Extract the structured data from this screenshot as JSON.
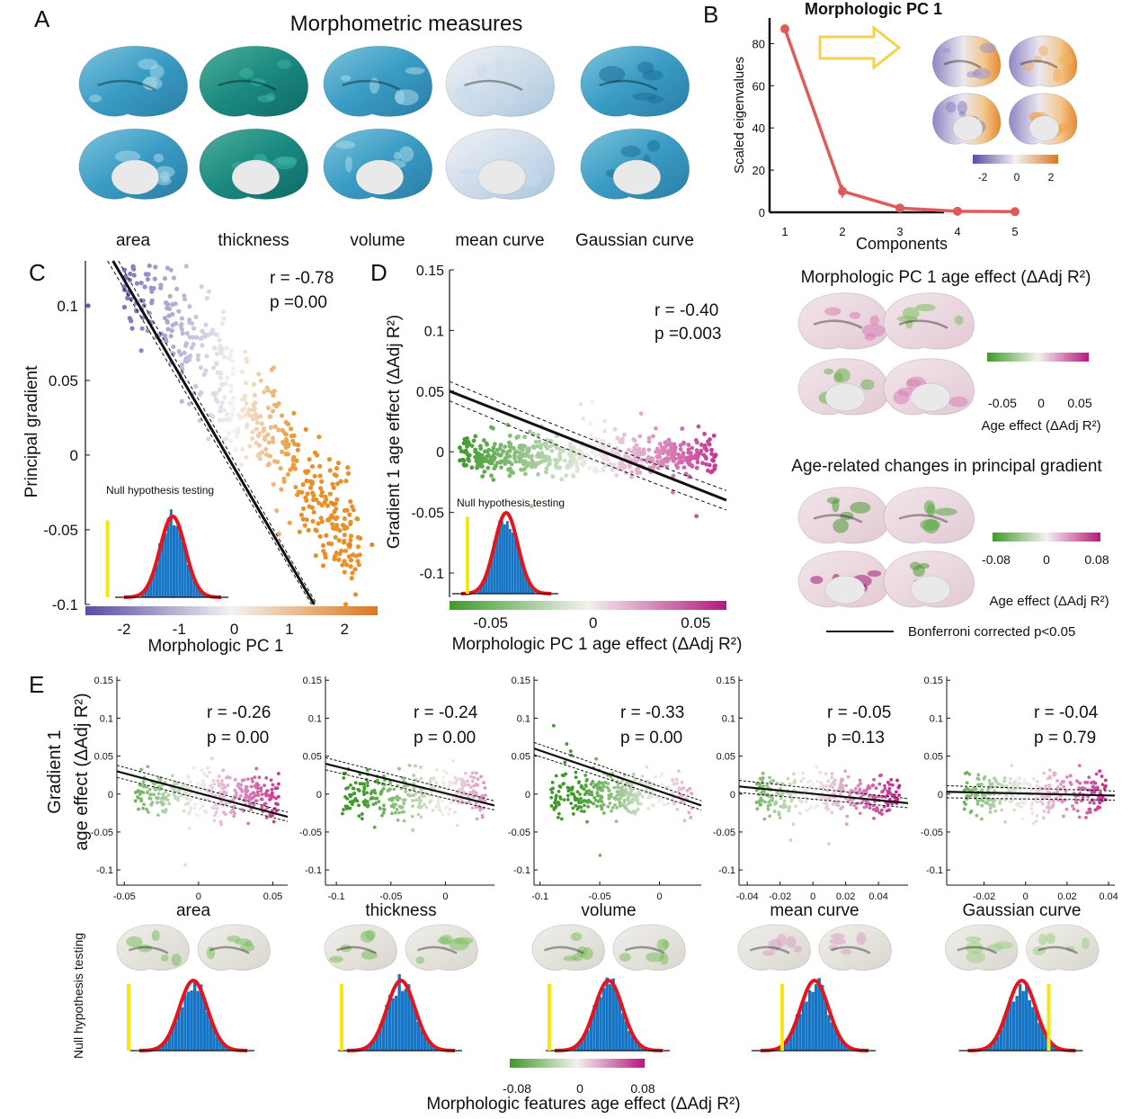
{
  "panelA": {
    "letter": "A",
    "title": "Morphometric measures",
    "measures": [
      "area",
      "thickness",
      "volume",
      "mean curve",
      "Gaussian curve"
    ]
  },
  "panelB": {
    "letter": "B",
    "pc_label": "Morphologic PC 1",
    "colorbar_ticks": [
      "-2",
      "0",
      "2"
    ],
    "chart_data": {
      "type": "line",
      "x": [
        1,
        2,
        3,
        4,
        5
      ],
      "values": [
        87,
        10,
        2,
        0.5,
        0.3
      ],
      "xlabel": "Components",
      "ylabel": "Scaled eigenvalues",
      "xticks": [
        "1",
        "2",
        "3",
        "4",
        "5"
      ],
      "yticks": [
        "0",
        "20",
        "40",
        "60",
        "80"
      ],
      "ylim": [
        0,
        90
      ],
      "color": "#e05a5a"
    }
  },
  "panelC": {
    "letter": "C",
    "stats": {
      "r": "r = -0.78",
      "p": "p =0.00"
    },
    "inset": "Null hypothesis testing",
    "chart_data": {
      "type": "scatter",
      "xlabel": "Morphologic PC 1",
      "ylabel": "Principal gradient",
      "xticks": [
        "-2",
        "-1",
        "0",
        "1",
        "2"
      ],
      "yticks": [
        "0.1",
        "0.05",
        "0",
        "-0.05",
        "-0.1"
      ],
      "xlim": [
        -2.7,
        2.6
      ],
      "ylim": [
        -0.1,
        0.13
      ],
      "fit": {
        "x": [
          -2.2,
          1.45
        ],
        "y": [
          0.13,
          -0.1
        ]
      }
    }
  },
  "panelD": {
    "letter": "D",
    "stats": {
      "r": "r = -0.40",
      "p": "p =0.003"
    },
    "inset": "Null hypothesis testing",
    "chart_data": {
      "type": "scatter",
      "xlabel": "Morphologic PC 1 age effect (ΔAdj R²)",
      "ylabel": "Gradient 1 age effect (ΔAdj R²)",
      "xticks": [
        "-0.05",
        "0",
        "0.05"
      ],
      "yticks": [
        "0.15",
        "0.1",
        "0.05",
        "0",
        "-0.05",
        "-0.1"
      ],
      "xlim": [
        -0.07,
        0.065
      ],
      "ylim": [
        -0.12,
        0.15
      ],
      "fit": {
        "x": [
          -0.07,
          0.065
        ],
        "y": [
          0.05,
          -0.04
        ]
      }
    }
  },
  "rightPanel": {
    "title1": "Morphologic PC 1 age effect (ΔAdj R²)",
    "cbar1_ticks": [
      "-0.05",
      "0",
      "0.05"
    ],
    "cbar1_label": "Age effect (ΔAdj R²)",
    "title2": "Age-related changes in principal gradient",
    "cbar2_ticks": [
      "-0.08",
      "0",
      "0.08"
    ],
    "cbar2_label": "Age effect (ΔAdj R²)",
    "legend": "Bonferroni corrected p<0.05"
  },
  "panelE": {
    "letter": "E",
    "ylabel_line1": "Gradient 1",
    "ylabel_line2": "age effect (ΔAdj R²)",
    "null_label": "Null hypothesis testing",
    "cbar_ticks": [
      "-0.08",
      "0",
      "0.08"
    ],
    "xlabel": "Morphologic features age effect (ΔAdj R²)",
    "yticks": [
      "0.15",
      "0.1",
      "0.05",
      "0",
      "-0.05",
      "-0.1"
    ],
    "chart_data": [
      {
        "type": "scatter",
        "name": "area",
        "r": "r = -0.26",
        "p": "p = 0.00",
        "xticks": [
          "-0.05",
          "0",
          "0.05"
        ],
        "xtick_values": [
          -0.05,
          0,
          0.05
        ],
        "xlim": [
          -0.055,
          0.06
        ],
        "ylim": [
          -0.12,
          0.155
        ],
        "fit_y": [
          0.03,
          -0.03
        ]
      },
      {
        "type": "scatter",
        "name": "thickness",
        "r": "r = -0.24",
        "p": "p = 0.00",
        "xticks": [
          "-0.1",
          "-0.05",
          "0"
        ],
        "xtick_values": [
          -0.1,
          -0.05,
          0
        ],
        "xlim": [
          -0.11,
          0.045
        ],
        "ylim": [
          -0.12,
          0.155
        ],
        "fit_y": [
          0.04,
          -0.015
        ]
      },
      {
        "type": "scatter",
        "name": "volume",
        "r": "r = -0.33",
        "p": "p = 0.00",
        "xticks": [
          "-0.1",
          "-0.05",
          "0"
        ],
        "xtick_values": [
          -0.1,
          -0.05,
          0
        ],
        "xlim": [
          -0.105,
          0.035
        ],
        "ylim": [
          -0.12,
          0.155
        ],
        "fit_y": [
          0.06,
          -0.015
        ]
      },
      {
        "type": "scatter",
        "name": "mean curve",
        "r": "r = -0.05",
        "p": "p =0.13",
        "xticks": [
          "-0.04",
          "-0.02",
          "0",
          "0.02",
          "0.04"
        ],
        "xtick_values": [
          -0.04,
          -0.02,
          0,
          0.02,
          0.04
        ],
        "xlim": [
          -0.045,
          0.058
        ],
        "ylim": [
          -0.12,
          0.155
        ],
        "fit_y": [
          0.01,
          -0.012
        ]
      },
      {
        "type": "scatter",
        "name": "Gaussian curve",
        "r": "r = -0.04",
        "p": "p = 0.79",
        "xticks": [
          "-0.02",
          "0",
          "0.02",
          "0.04"
        ],
        "xtick_values": [
          -0.02,
          0,
          0.02,
          0.04
        ],
        "xlim": [
          -0.038,
          0.043
        ],
        "ylim": [
          -0.12,
          0.155
        ],
        "fit_y": [
          0.003,
          -0.002
        ]
      }
    ]
  }
}
